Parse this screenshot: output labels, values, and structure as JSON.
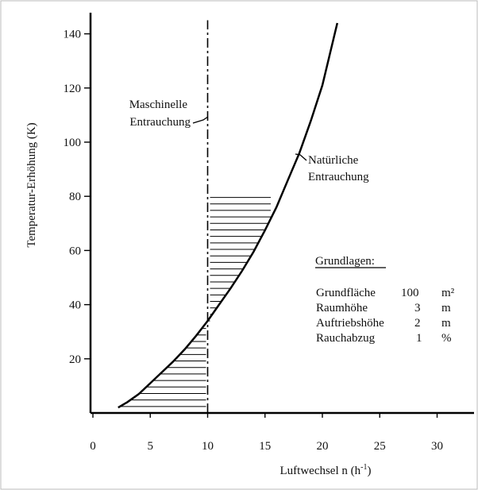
{
  "chart_data": {
    "type": "line",
    "xlabel": "Luftwechsel  n  (h",
    "xlabel_sup": "-1",
    "xlabel_close": ")",
    "ylabel": "Temperatur-Erhöhung (K)",
    "xlim": [
      0,
      30
    ],
    "ylim": [
      0,
      145
    ],
    "x_ticks": [
      0,
      5,
      10,
      15,
      20,
      25,
      30
    ],
    "y_ticks": [
      20,
      40,
      60,
      80,
      100,
      120,
      140
    ],
    "grid": false,
    "series": [
      {
        "name": "Natürliche Entrauchung",
        "x": [
          2.2,
          3,
          4,
          5,
          6,
          7,
          8,
          9,
          10,
          11,
          12,
          13,
          14,
          15,
          16,
          17,
          18,
          19,
          20,
          21.3
        ],
        "y": [
          2,
          4,
          7,
          11,
          15,
          19,
          23.5,
          28.5,
          34,
          40,
          46,
          52.5,
          59.5,
          67.5,
          76,
          86,
          96,
          108,
          121,
          144
        ]
      },
      {
        "name": "Maschinelle Entrauchung",
        "x": [
          10,
          10
        ],
        "y": [
          0,
          145
        ]
      }
    ],
    "hatched_regions": [
      {
        "between": "curve-below",
        "x_from": 2.2,
        "x_to": 10
      },
      {
        "between": "curve-above",
        "x_from": 10,
        "x_to": 15.5,
        "y_to": 82
      }
    ],
    "annotations": {
      "maschinelle": [
        "Maschinelle",
        "Entrauchung"
      ],
      "natuerliche": [
        "Natürliche",
        "Entrauchung"
      ]
    },
    "legend_box": {
      "title": "Grundlagen:",
      "rows": [
        {
          "label": "Grundfläche",
          "value": "100",
          "unit": "m²"
        },
        {
          "label": "Raumhöhe",
          "value": "3",
          "unit": "m"
        },
        {
          "label": "Auftriebshöhe",
          "value": "2",
          "unit": "m"
        },
        {
          "label": "Rauchabzug",
          "value": "1",
          "unit": "%"
        }
      ]
    }
  }
}
